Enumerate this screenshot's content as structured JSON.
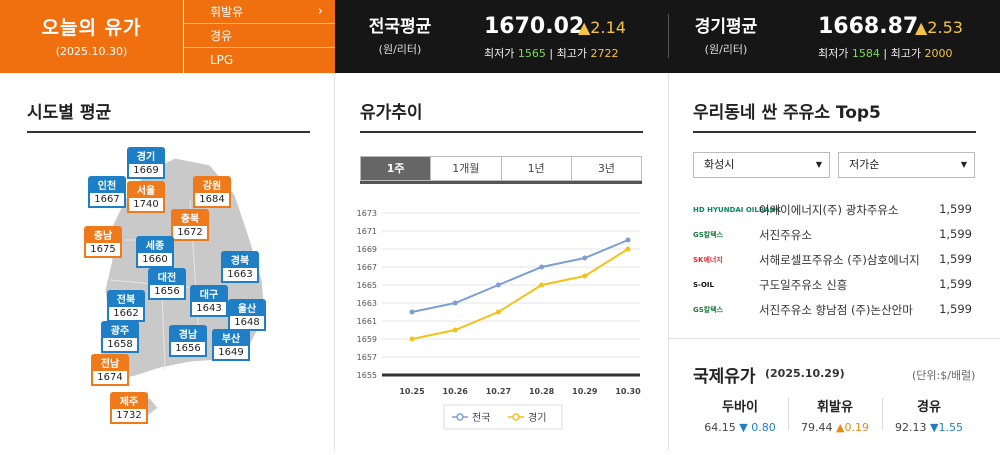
{
  "header": {
    "title": "오늘의 유가",
    "date": "(2025.10.30)",
    "fuel_tabs": [
      {
        "label": "휘발유",
        "chevron": "›"
      },
      {
        "label": "경유"
      },
      {
        "label": "LPG"
      }
    ],
    "national": {
      "label": "전국평균",
      "unit": "(원/리터)",
      "price": "1670.02",
      "change": "▲2.14",
      "min_label": "최저가",
      "min": "1565",
      "sep": "|",
      "max_label": "최고가",
      "max": "2722"
    },
    "gyeonggi": {
      "label": "경기평균",
      "unit": "(원/리터)",
      "price": "1668.87",
      "change": "▲2.53",
      "min_label": "최저가",
      "min": "1584",
      "sep": "|",
      "max_label": "최고가",
      "max": "2000"
    }
  },
  "regions_panel": {
    "title": "시도별 평균",
    "regions": [
      {
        "name": "경기",
        "price": "1669",
        "color": "blue"
      },
      {
        "name": "인천",
        "price": "1667",
        "color": "blue"
      },
      {
        "name": "서울",
        "price": "1740",
        "color": "orange"
      },
      {
        "name": "강원",
        "price": "1684",
        "color": "orange"
      },
      {
        "name": "충북",
        "price": "1672",
        "color": "orange"
      },
      {
        "name": "충남",
        "price": "1675",
        "color": "orange"
      },
      {
        "name": "세종",
        "price": "1660",
        "color": "blue"
      },
      {
        "name": "대전",
        "price": "1656",
        "color": "blue"
      },
      {
        "name": "경북",
        "price": "1663",
        "color": "blue"
      },
      {
        "name": "전북",
        "price": "1662",
        "color": "blue"
      },
      {
        "name": "대구",
        "price": "1643",
        "color": "blue"
      },
      {
        "name": "울산",
        "price": "1648",
        "color": "blue"
      },
      {
        "name": "광주",
        "price": "1658",
        "color": "blue"
      },
      {
        "name": "경남",
        "price": "1656",
        "color": "blue"
      },
      {
        "name": "부산",
        "price": "1649",
        "color": "blue"
      },
      {
        "name": "전남",
        "price": "1674",
        "color": "orange"
      },
      {
        "name": "제주",
        "price": "1732",
        "color": "orange"
      }
    ]
  },
  "trend_panel": {
    "title": "유가추이",
    "tabs": [
      "1주",
      "1개월",
      "1년",
      "3년"
    ],
    "active_tab": 0
  },
  "chart_data": {
    "type": "line",
    "title": "",
    "xlabel": "",
    "ylabel": "",
    "x": [
      "10.25",
      "10.26",
      "10.27",
      "10.28",
      "10.29",
      "10.30"
    ],
    "ylim": [
      1655,
      1673
    ],
    "yticks": [
      1655,
      1657,
      1659,
      1661,
      1663,
      1665,
      1667,
      1669,
      1671,
      1673
    ],
    "grid": true,
    "legend": "bottom-center",
    "series": [
      {
        "name": "전국",
        "color": "#7d9fd6",
        "values": [
          1662,
          1663,
          1665,
          1667,
          1668,
          1670
        ]
      },
      {
        "name": "경기",
        "color": "#f2c21b",
        "values": [
          1659,
          1660,
          1662,
          1665,
          1666,
          1669
        ]
      }
    ]
  },
  "top5_panel": {
    "title": "우리동네 싼 주유소 Top5",
    "city_select": "화성시",
    "sort_select": "저가순",
    "select_arrow": "▼",
    "stations": [
      {
        "logo": "HD HYUNDAI OILBANK",
        "logo_color": "#0a8a5c",
        "name": "이케이에너지(주) 광차주유소",
        "price": "1,599"
      },
      {
        "logo": "GS칼텍스",
        "logo_color": "#1f7a3e",
        "name": "서진주유소",
        "price": "1,599"
      },
      {
        "logo": "SK에너지",
        "logo_color": "#e3262f",
        "name": "서해로셀프주유소 (주)삼호에너지",
        "price": "1,599"
      },
      {
        "logo": "S-OIL",
        "logo_color": "#111111",
        "name": "구도일주유소 신흥",
        "price": "1,599"
      },
      {
        "logo": "GS칼텍스",
        "logo_color": "#1f7a3e",
        "name": "서진주유소 향남점 (주)논산안마",
        "price": "1,599"
      }
    ]
  },
  "intl_panel": {
    "title": "국제유가",
    "date": "(2025.10.29)",
    "unit": "(단위:$/배럴)",
    "oils": [
      {
        "name": "두바이",
        "value": "64.15",
        "change": "▼ 0.80",
        "direction": "down"
      },
      {
        "name": "휘발유",
        "value": "79.44",
        "change": "▲0.19",
        "direction": "up"
      },
      {
        "name": "경유",
        "value": "92.13",
        "change": "▼1.55",
        "direction": "down"
      }
    ]
  }
}
